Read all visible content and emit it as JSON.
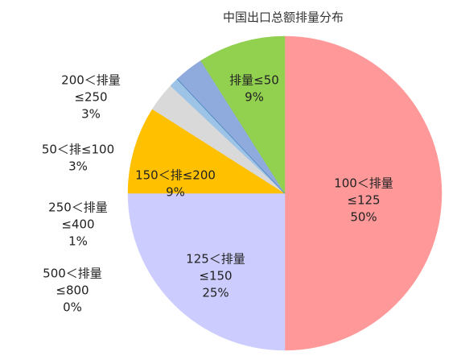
{
  "chart_data": {
    "type": "pie",
    "title": "中国出口总额排量分布",
    "categories": [
      [
        "100＜排量",
        "≤125"
      ],
      [
        "125＜排量",
        "≤150"
      ],
      [
        "150＜排≤200"
      ],
      [
        "50＜排≤100"
      ],
      [
        "250＜排量",
        "≤400"
      ],
      [
        "500＜排量",
        "≤800"
      ],
      [
        "200＜排量",
        "≤250"
      ],
      [
        "排量≤50"
      ]
    ],
    "values": [
      50,
      25,
      9,
      3,
      1,
      0,
      3,
      9
    ],
    "value_labels": [
      "50%",
      "25%",
      "9%",
      "3%",
      "1%",
      "0%",
      "3%",
      "9%"
    ],
    "colors": [
      "#ff9999",
      "#ccccff",
      "#ffc000",
      "#d9d9d9",
      "#9dc3e6",
      "#2e75b6",
      "#8faadc",
      "#92d050"
    ]
  }
}
